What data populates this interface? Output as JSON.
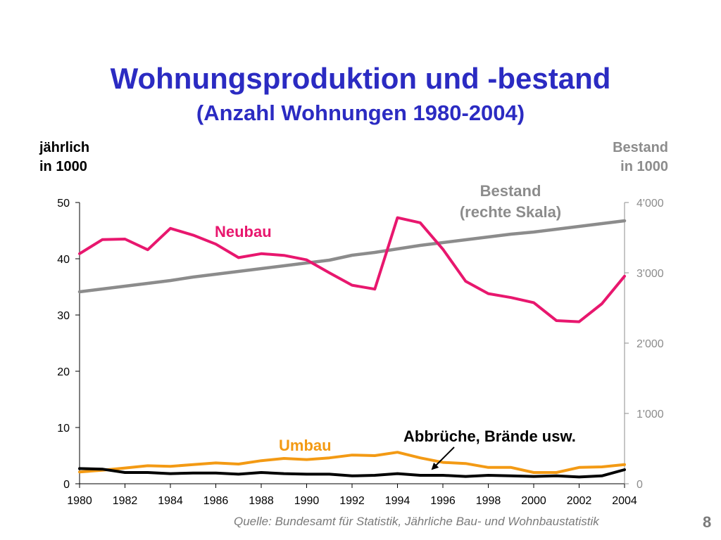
{
  "slide": {
    "title": "Wohnungsproduktion und -bestand",
    "subtitle": "(Anzahl Wohnungen 1980-2004)",
    "left_axis_caption": [
      "jährlich",
      "in 1000"
    ],
    "right_axis_caption": [
      "Bestand",
      "in 1000"
    ],
    "source": "Quelle: Bundesamt für Statistik, Jährliche Bau- und Wohnbaustatistik",
    "page_number": "8"
  },
  "chart_data": {
    "type": "line",
    "x": [
      1980,
      1981,
      1982,
      1983,
      1984,
      1985,
      1986,
      1987,
      1988,
      1989,
      1990,
      1991,
      1992,
      1993,
      1994,
      1995,
      1996,
      1997,
      1998,
      1999,
      2000,
      2001,
      2002,
      2003,
      2004
    ],
    "x_tick_labels": [
      "1980",
      "1982",
      "1984",
      "1986",
      "1988",
      "1990",
      "1992",
      "1994",
      "1996",
      "1998",
      "2000",
      "2002",
      "2004"
    ],
    "y_left_ticks": [
      "0",
      "10",
      "20",
      "30",
      "40",
      "50"
    ],
    "y_left_range": [
      0,
      50
    ],
    "y_right_ticks": [
      "0",
      "1'000",
      "2'000",
      "3'000",
      "4'000"
    ],
    "y_right_range": [
      0,
      4000
    ],
    "grid": false,
    "series": [
      {
        "name": "Neubau",
        "axis": "left",
        "color": "#e8176e",
        "values": [
          40.9,
          43.4,
          43.5,
          41.6,
          45.4,
          44.2,
          42.6,
          40.2,
          40.9,
          40.6,
          39.8,
          37.5,
          35.3,
          34.6,
          47.3,
          46.4,
          41.7,
          36.0,
          33.8,
          33.1,
          32.2,
          29.0,
          28.8,
          32.0,
          36.9
        ]
      },
      {
        "name": "Umbau",
        "axis": "left",
        "color": "#f39a14",
        "values": [
          2.1,
          2.4,
          2.8,
          3.2,
          3.1,
          3.4,
          3.7,
          3.5,
          4.1,
          4.5,
          4.3,
          4.6,
          5.1,
          5.0,
          5.6,
          4.6,
          3.8,
          3.6,
          2.9,
          2.9,
          2.0,
          2.0,
          2.9,
          3.0,
          3.4
        ]
      },
      {
        "name": "Abbrüche, Brände usw.",
        "axis": "left",
        "color": "#000000",
        "values": [
          2.7,
          2.6,
          2.0,
          2.0,
          1.8,
          1.9,
          1.9,
          1.7,
          2.0,
          1.8,
          1.7,
          1.7,
          1.4,
          1.5,
          1.8,
          1.5,
          1.5,
          1.3,
          1.5,
          1.4,
          1.3,
          1.4,
          1.2,
          1.4,
          2.5
        ]
      },
      {
        "name": "Bestand",
        "axis": "right",
        "color": "#8c8c8c",
        "values": [
          2730,
          2770,
          2810,
          2850,
          2890,
          2940,
          2980,
          3020,
          3060,
          3100,
          3140,
          3180,
          3250,
          3290,
          3340,
          3390,
          3430,
          3470,
          3510,
          3550,
          3580,
          3620,
          3660,
          3700,
          3740
        ]
      }
    ],
    "annotations": {
      "neubau": "Neubau",
      "umbau": "Umbau",
      "abbrueche": "Abbrüche, Brände usw.",
      "bestand_line1": "Bestand",
      "bestand_line2": "(rechte Skala)"
    }
  }
}
